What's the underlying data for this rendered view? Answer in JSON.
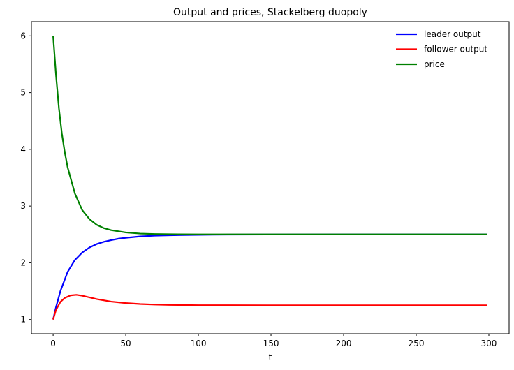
{
  "chart_data": {
    "type": "line",
    "title": "Output and prices, Stackelberg duopoly",
    "xlabel": "t",
    "ylabel": "",
    "xlim": [
      -14.95,
      313.95
    ],
    "ylim": [
      0.75,
      6.25
    ],
    "xticks": [
      0,
      50,
      100,
      150,
      200,
      250,
      300
    ],
    "yticks": [
      1,
      2,
      3,
      4,
      5,
      6
    ],
    "grid": false,
    "legend": {
      "position": "top-right",
      "frame": false
    },
    "series": [
      {
        "name": "leader output",
        "color": "#0000ff",
        "x": [
          0,
          2,
          5,
          10,
          15,
          20,
          25,
          30,
          35,
          40,
          45,
          50,
          60,
          70,
          80,
          90,
          100,
          110,
          120,
          150,
          200,
          250,
          299
        ],
        "y": [
          1.0,
          1.22,
          1.5,
          1.84,
          2.05,
          2.18,
          2.27,
          2.33,
          2.37,
          2.4,
          2.425,
          2.44,
          2.465,
          2.478,
          2.485,
          2.49,
          2.493,
          2.495,
          2.497,
          2.499,
          2.5,
          2.5,
          2.5
        ]
      },
      {
        "name": "follower output",
        "color": "#ff0000",
        "x": [
          0,
          2,
          5,
          8,
          12,
          16,
          20,
          25,
          30,
          40,
          50,
          60,
          70,
          80,
          100,
          120,
          150,
          200,
          250,
          299
        ],
        "y": [
          1.0,
          1.17,
          1.31,
          1.38,
          1.425,
          1.435,
          1.42,
          1.39,
          1.36,
          1.315,
          1.29,
          1.273,
          1.263,
          1.257,
          1.252,
          1.251,
          1.25,
          1.25,
          1.25,
          1.25
        ]
      },
      {
        "name": "price",
        "color": "#008000",
        "x": [
          0,
          2,
          4,
          6,
          8,
          10,
          15,
          20,
          25,
          30,
          35,
          40,
          50,
          60,
          70,
          80,
          100,
          120,
          150,
          200,
          250,
          299
        ],
        "y": [
          6.0,
          5.3,
          4.72,
          4.28,
          3.95,
          3.68,
          3.22,
          2.93,
          2.77,
          2.67,
          2.61,
          2.575,
          2.535,
          2.515,
          2.507,
          2.503,
          2.501,
          2.5,
          2.5,
          2.5,
          2.5,
          2.5
        ]
      }
    ]
  }
}
